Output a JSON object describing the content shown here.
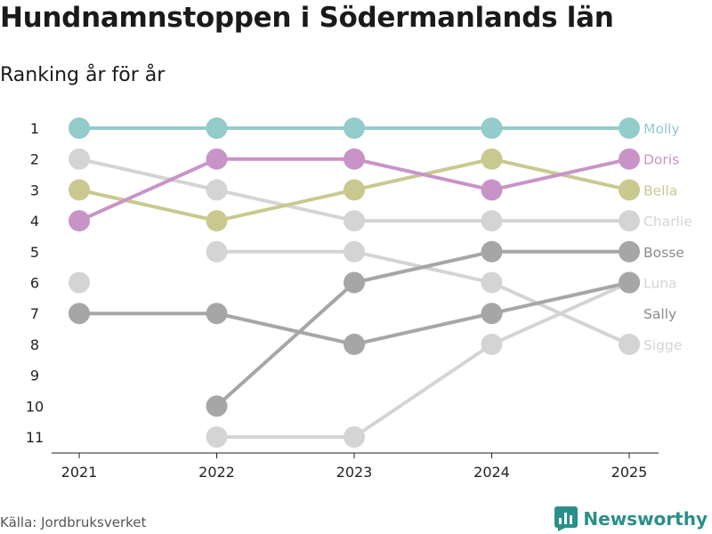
{
  "title": "Hundnamnstoppen i Södermanlands län",
  "subtitle": "Ranking år för år",
  "source": "Källa: Jordbruksverket",
  "brand": {
    "name": "Newsworthy",
    "logo_icon": "bar-chart-icon",
    "color": "#2a8f88"
  },
  "chart_data": {
    "type": "line",
    "subtype": "bump",
    "x": [
      "2021",
      "2022",
      "2023",
      "2024",
      "2025"
    ],
    "ylabel_ticks": [
      "1",
      "2",
      "3",
      "4",
      "5",
      "6",
      "7",
      "8",
      "9",
      "10",
      "11"
    ],
    "ylim": [
      1,
      11
    ],
    "y_reversed": true,
    "series": [
      {
        "name": "Sigge",
        "color": "#d4d4d4",
        "values": [
          null,
          5,
          5,
          6,
          8
        ]
      },
      {
        "name": "Luna",
        "color": "#d4d4d4",
        "values": [
          null,
          11,
          11,
          8,
          6
        ]
      },
      {
        "name": "Charlie",
        "color": "#d4d4d4",
        "values": [
          2,
          3,
          4,
          4,
          4
        ]
      },
      {
        "name": "Sally",
        "color": "#d4d4d4",
        "values": [
          6,
          null,
          null,
          null,
          null
        ]
      },
      {
        "name": "Bosse",
        "color": "#a6a6a6",
        "values": [
          7,
          7,
          8,
          7,
          6
        ]
      },
      {
        "name": "Bosse2",
        "label": "Bosse",
        "color": "#a6a6a6",
        "values": [
          null,
          10,
          6,
          5,
          5
        ]
      },
      {
        "name": "Bella",
        "color": "#c9c98f",
        "values": [
          3,
          4,
          3,
          2,
          3
        ]
      },
      {
        "name": "Doris",
        "color": "#c894c8",
        "values": [
          4,
          2,
          2,
          3,
          2
        ]
      },
      {
        "name": "Molly",
        "color": "#94cbcb",
        "values": [
          1,
          1,
          1,
          1,
          1
        ]
      }
    ],
    "end_labels": [
      {
        "label": "Molly",
        "rank": 1,
        "color": "#94cbcb"
      },
      {
        "label": "Doris",
        "rank": 2,
        "color": "#c894c8"
      },
      {
        "label": "Bella",
        "rank": 3,
        "color": "#c9c98f"
      },
      {
        "label": "Charlie",
        "rank": 4,
        "color": "#d4d4d4"
      },
      {
        "label": "Bosse",
        "rank": 5,
        "color": "#8a8a8a"
      },
      {
        "label": "Luna",
        "rank": 6,
        "color": "#d4d4d4"
      },
      {
        "label": "Sally",
        "rank": 7,
        "color": "#8a8a8a"
      },
      {
        "label": "Sigge",
        "rank": 8,
        "color": "#d4d4d4"
      }
    ]
  }
}
